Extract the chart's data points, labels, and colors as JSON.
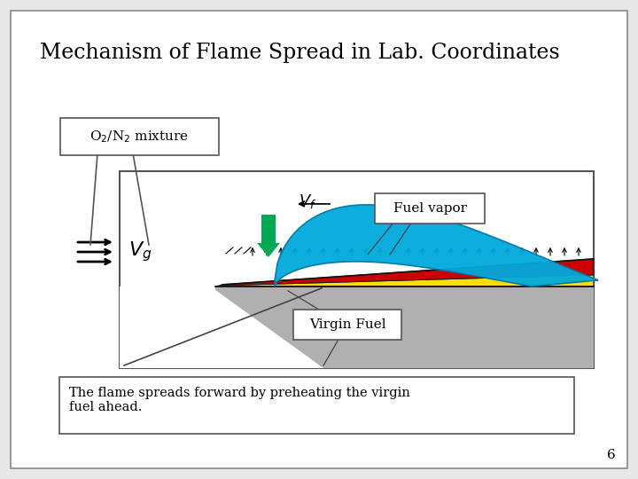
{
  "title": "Mechanism of Flame Spread in Lab. Coordinates",
  "bg_color": "#e8e8e8",
  "gray_fuel_color": "#b0b0b0",
  "red_layer_color": "#cc0000",
  "yellow_layer_color": "#ffdd00",
  "blue_flame_color": "#00aadd",
  "green_arrow_color": "#00aa55",
  "caption": "The flame spreads forward by preheating the virgin\nfuel ahead.",
  "page_number": "6"
}
